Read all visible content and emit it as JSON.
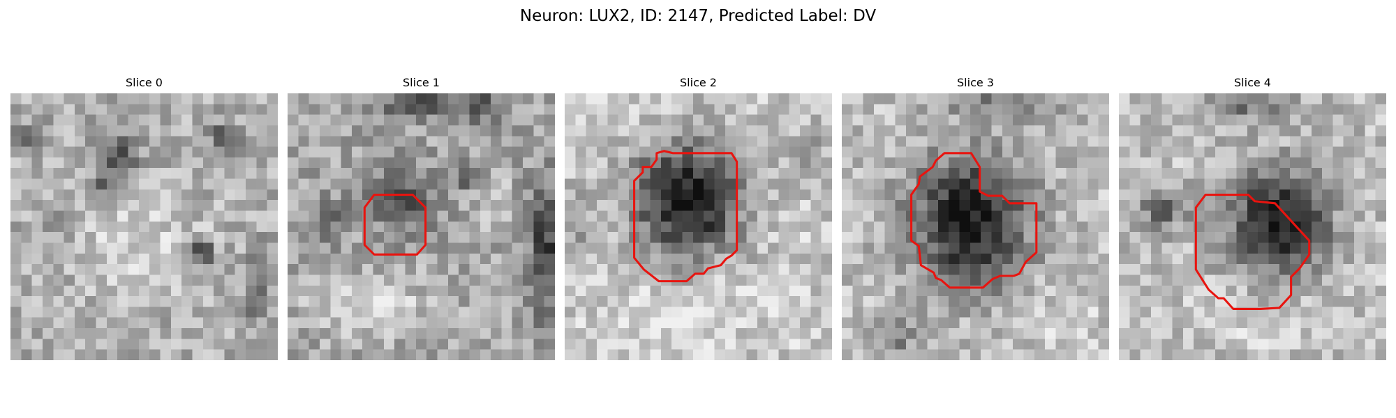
{
  "figure": {
    "title": "Neuron: LUX2, ID: 2147, Predicted Label: DV"
  },
  "colors": {
    "outline": "#e8140f",
    "background": "#ffffff"
  },
  "panels": [
    {
      "title": "Slice 0",
      "image_description": "grayscale noisy microscopy patch, no outline",
      "has_outline": false
    },
    {
      "title": "Slice 1",
      "image_description": "grayscale noisy microscopy patch with small dark blob outlined in red",
      "has_outline": true
    },
    {
      "title": "Slice 2",
      "image_description": "grayscale microscopy patch with large dark round neuron outlined in red",
      "has_outline": true
    },
    {
      "title": "Slice 3",
      "image_description": "grayscale microscopy patch with large dark round neuron outlined in red",
      "has_outline": true
    },
    {
      "title": "Slice 4",
      "image_description": "grayscale microscopy patch with dark neuron partially outlined in red",
      "has_outline": true
    }
  ]
}
